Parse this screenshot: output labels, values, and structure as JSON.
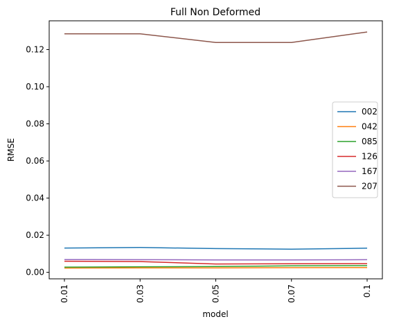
{
  "chart_data": {
    "type": "line",
    "title": "Full Non Deformed",
    "xlabel": "model",
    "ylabel": "RMSE",
    "categories": [
      "0.01",
      "0.03",
      "0.05",
      "0.07",
      "0.1"
    ],
    "ylim": [
      -0.0035,
      0.1355
    ],
    "yticks": [
      "0.00",
      "0.02",
      "0.04",
      "0.06",
      "0.08",
      "0.10",
      "0.12"
    ],
    "ytick_values": [
      0.0,
      0.02,
      0.04,
      0.06,
      0.08,
      0.1,
      0.12
    ],
    "grid": false,
    "legend_position": "center-right",
    "series": [
      {
        "name": "002",
        "color": "#1f77b4",
        "values": [
          0.0131,
          0.0134,
          0.0128,
          0.0125,
          0.013
        ]
      },
      {
        "name": "042",
        "color": "#ff7f0e",
        "values": [
          0.0023,
          0.0024,
          0.0024,
          0.0025,
          0.0026
        ]
      },
      {
        "name": "085",
        "color": "#2ca02c",
        "values": [
          0.0028,
          0.003,
          0.0031,
          0.0035,
          0.0036
        ]
      },
      {
        "name": "126",
        "color": "#d62728",
        "values": [
          0.006,
          0.0058,
          0.0045,
          0.0046,
          0.0047
        ]
      },
      {
        "name": "167",
        "color": "#9467bd",
        "values": [
          0.0069,
          0.0068,
          0.0067,
          0.0067,
          0.0068
        ]
      },
      {
        "name": "207",
        "color": "#8c564b",
        "values": [
          0.1285,
          0.1285,
          0.1238,
          0.1238,
          0.1295
        ]
      }
    ]
  }
}
